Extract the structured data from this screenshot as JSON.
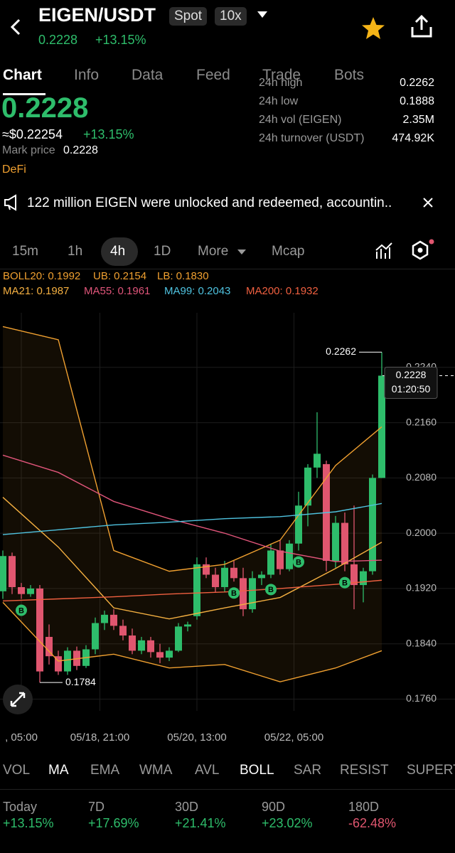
{
  "header": {
    "pair": "EIGEN/USDT",
    "market": "Spot",
    "leverage": "10x",
    "price": "0.2228",
    "change": "+13.15%"
  },
  "tabs": [
    "Chart",
    "Info",
    "Data",
    "Feed",
    "Trade",
    "Bots"
  ],
  "stats": {
    "price": "0.2228",
    "usd_price": "≈$0.22254",
    "change": "+13.15%",
    "mark_label": "Mark price",
    "mark_price": "0.2228",
    "tag": "DeFi",
    "rows": [
      [
        "24h high",
        "0.2262"
      ],
      [
        "24h low",
        "0.1888"
      ],
      [
        "24h vol (EIGEN)",
        "2.35M"
      ],
      [
        "24h turnover (USDT)",
        "474.92K"
      ]
    ]
  },
  "news": "122 million EIGEN were unlocked and redeemed, accountin..",
  "intervals": [
    "15m",
    "1h",
    "4h",
    "1D",
    "More",
    "Mcap"
  ],
  "indicators": {
    "boll": [
      "BOLL20: 0.1992",
      "UB: 0.2154",
      "LB: 0.1830"
    ],
    "ma": [
      "MA21: 0.1987",
      "MA55: 0.1961",
      "MA99: 0.2043",
      "MA200: 0.1932"
    ]
  },
  "chart_data": {
    "type": "candlestick",
    "ylim": [
      0.1743,
      0.2319
    ],
    "yticks": [
      {
        "value": 0.224,
        "label": "0.2240"
      },
      {
        "value": 0.216,
        "label": "0.2160"
      },
      {
        "value": 0.208,
        "label": "0.2080"
      },
      {
        "value": 0.2,
        "label": "0.2000"
      },
      {
        "value": 0.192,
        "label": "0.1920"
      },
      {
        "value": 0.184,
        "label": "0.1840"
      },
      {
        "value": 0.176,
        "label": "0.1760"
      }
    ],
    "xticks": [
      {
        "value": 2,
        "label": ", 05:00"
      },
      {
        "value": 10.5,
        "label": "05/18, 21:00"
      },
      {
        "value": 21,
        "label": "05/20, 13:00"
      },
      {
        "value": 31.5,
        "label": "05/22, 05:00"
      }
    ],
    "up_color": "#2ebd6b",
    "down_color": "#e0566f",
    "candles": [
      {
        "open": 0.1916,
        "high": 0.1975,
        "low": 0.1905,
        "close": 0.1967
      },
      {
        "open": 0.1967,
        "high": 0.1972,
        "low": 0.1912,
        "close": 0.1922
      },
      {
        "open": 0.1922,
        "high": 0.1928,
        "low": 0.1905,
        "close": 0.1912
      },
      {
        "open": 0.1912,
        "high": 0.1925,
        "low": 0.1908,
        "close": 0.192
      },
      {
        "open": 0.192,
        "high": 0.1925,
        "low": 0.1784,
        "close": 0.18
      },
      {
        "open": 0.185,
        "high": 0.1868,
        "low": 0.181,
        "close": 0.1822
      },
      {
        "open": 0.1822,
        "high": 0.183,
        "low": 0.1795,
        "close": 0.18
      },
      {
        "open": 0.18,
        "high": 0.1835,
        "low": 0.1795,
        "close": 0.183
      },
      {
        "open": 0.183,
        "high": 0.1836,
        "low": 0.1802,
        "close": 0.1808
      },
      {
        "open": 0.1808,
        "high": 0.1838,
        "low": 0.1805,
        "close": 0.1832
      },
      {
        "open": 0.1832,
        "high": 0.1878,
        "low": 0.1825,
        "close": 0.187
      },
      {
        "open": 0.187,
        "high": 0.1888,
        "low": 0.186,
        "close": 0.1882
      },
      {
        "open": 0.1882,
        "high": 0.189,
        "low": 0.186,
        "close": 0.1866
      },
      {
        "open": 0.1866,
        "high": 0.1875,
        "low": 0.1845,
        "close": 0.1852
      },
      {
        "open": 0.1852,
        "high": 0.1862,
        "low": 0.1825,
        "close": 0.183
      },
      {
        "open": 0.183,
        "high": 0.185,
        "low": 0.1825,
        "close": 0.1845
      },
      {
        "open": 0.1845,
        "high": 0.185,
        "low": 0.182,
        "close": 0.1828
      },
      {
        "open": 0.1828,
        "high": 0.184,
        "low": 0.1812,
        "close": 0.182
      },
      {
        "open": 0.182,
        "high": 0.1835,
        "low": 0.1815,
        "close": 0.183
      },
      {
        "open": 0.183,
        "high": 0.187,
        "low": 0.1828,
        "close": 0.1865
      },
      {
        "open": 0.1865,
        "high": 0.1872,
        "low": 0.1858,
        "close": 0.1868
      },
      {
        "open": 0.188,
        "high": 0.1965,
        "low": 0.1875,
        "close": 0.1955
      },
      {
        "open": 0.1955,
        "high": 0.1965,
        "low": 0.1935,
        "close": 0.194
      },
      {
        "open": 0.194,
        "high": 0.195,
        "low": 0.1915,
        "close": 0.1922
      },
      {
        "open": 0.1922,
        "high": 0.196,
        "low": 0.1915,
        "close": 0.195
      },
      {
        "open": 0.195,
        "high": 0.196,
        "low": 0.193,
        "close": 0.1935
      },
      {
        "open": 0.1935,
        "high": 0.195,
        "low": 0.188,
        "close": 0.189
      },
      {
        "open": 0.189,
        "high": 0.1945,
        "low": 0.1885,
        "close": 0.1935
      },
      {
        "open": 0.1935,
        "high": 0.1945,
        "low": 0.1925,
        "close": 0.194
      },
      {
        "open": 0.194,
        "high": 0.1985,
        "low": 0.1935,
        "close": 0.1975
      },
      {
        "open": 0.1975,
        "high": 0.199,
        "low": 0.194,
        "close": 0.1948
      },
      {
        "open": 0.1948,
        "high": 0.199,
        "low": 0.1945,
        "close": 0.1985
      },
      {
        "open": 0.1985,
        "high": 0.206,
        "low": 0.1975,
        "close": 0.204
      },
      {
        "open": 0.204,
        "high": 0.21,
        "low": 0.201,
        "close": 0.2095
      },
      {
        "open": 0.2095,
        "high": 0.2175,
        "low": 0.208,
        "close": 0.2115
      },
      {
        "open": 0.21,
        "high": 0.2105,
        "low": 0.1945,
        "close": 0.196
      },
      {
        "open": 0.196,
        "high": 0.2025,
        "low": 0.195,
        "close": 0.2015
      },
      {
        "open": 0.2015,
        "high": 0.203,
        "low": 0.1945,
        "close": 0.1955
      },
      {
        "open": 0.1955,
        "high": 0.204,
        "low": 0.189,
        "close": 0.1925
      },
      {
        "open": 0.1925,
        "high": 0.195,
        "low": 0.19,
        "close": 0.1945
      },
      {
        "open": 0.1945,
        "high": 0.2085,
        "low": 0.194,
        "close": 0.208
      },
      {
        "open": 0.208,
        "high": 0.2262,
        "low": 0.208,
        "close": 0.2228
      }
    ],
    "series": [
      {
        "color": "#f0a030",
        "x": [
          0,
          6,
          12,
          18,
          24,
          30,
          36,
          41
        ],
        "values": [
          0.2299,
          0.228,
          0.1975,
          0.1945,
          0.1955,
          0.199,
          0.2098,
          0.2154
        ]
      },
      {
        "color": "#f0a030",
        "x": [
          0,
          6,
          12,
          18,
          24,
          30,
          36,
          41
        ],
        "values": [
          0.19,
          0.1815,
          0.1825,
          0.1805,
          0.181,
          0.1785,
          0.1805,
          0.183
        ]
      },
      {
        "color": "#f5b041",
        "x": [
          0,
          6,
          12,
          18,
          24,
          30,
          36,
          41
        ],
        "values": [
          0.2052,
          0.198,
          0.1892,
          0.1876,
          0.1892,
          0.1907,
          0.1949,
          0.1987
        ]
      },
      {
        "color": "#e0557a",
        "x": [
          0,
          6,
          12,
          18,
          24,
          30,
          36,
          41
        ],
        "values": [
          0.2113,
          0.2088,
          0.2046,
          0.2021,
          0.2,
          0.1974,
          0.1959,
          0.1961
        ]
      },
      {
        "color": "#4fc3e0",
        "x": [
          0,
          6,
          12,
          18,
          24,
          30,
          36,
          41
        ],
        "values": [
          0.1998,
          0.2005,
          0.2012,
          0.2016,
          0.2021,
          0.2024,
          0.2031,
          0.2043
        ]
      },
      {
        "color": "#f06040",
        "x": [
          0,
          6,
          12,
          18,
          24,
          30,
          36,
          41
        ],
        "values": [
          0.1902,
          0.1905,
          0.1908,
          0.1912,
          0.1915,
          0.192,
          0.1926,
          0.1932
        ]
      }
    ],
    "buy_markers": {
      "label": "B",
      "index": [
        2,
        25,
        29,
        32,
        37
      ]
    },
    "annotations": [
      {
        "index": 41,
        "value": 0.2262,
        "label": "0.2262"
      },
      {
        "index": 4,
        "value": 0.1784,
        "label": "0.1784"
      }
    ],
    "last_price": {
      "value": 0.2228,
      "label": "0.2228",
      "countdown": "01:20:50"
    }
  },
  "indicator_tabs": [
    "VOL",
    "MA",
    "EMA",
    "WMA",
    "AVL",
    "BOLL",
    "SAR",
    "RESIST",
    "SUPERT"
  ],
  "performance": [
    [
      "Today",
      "+13.15%"
    ],
    [
      "7D",
      "+17.69%"
    ],
    [
      "30D",
      "+21.41%"
    ],
    [
      "90D",
      "+23.02%"
    ],
    [
      "180D",
      "-62.48%"
    ]
  ]
}
